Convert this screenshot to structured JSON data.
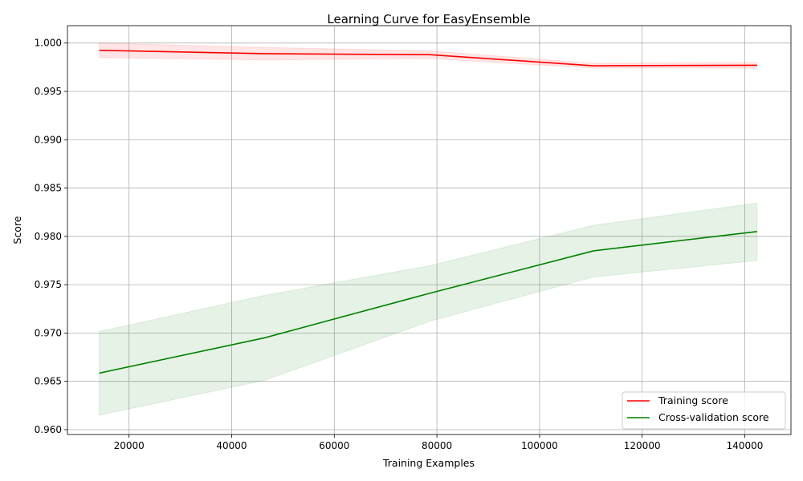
{
  "chart_data": {
    "type": "line",
    "title": "Learning Curve for EasyEnsemble",
    "xlabel": "Training Examples",
    "ylabel": "Score",
    "xlim": [
      8000,
      149000
    ],
    "ylim": [
      0.9595,
      1.0018
    ],
    "xticks": [
      20000,
      40000,
      60000,
      80000,
      100000,
      120000,
      140000
    ],
    "yticks": [
      0.96,
      0.965,
      0.97,
      0.975,
      0.98,
      0.985,
      0.99,
      0.995,
      1.0
    ],
    "ytick_labels": [
      "0.960",
      "0.965",
      "0.970",
      "0.975",
      "0.980",
      "0.985",
      "0.990",
      "0.995",
      "1.000"
    ],
    "grid": true,
    "legend_position": "lower-right",
    "x": [
      14200,
      46400,
      78500,
      110500,
      142400
    ],
    "series": [
      {
        "name": "Training score",
        "color": "#ff0000",
        "band_color": "#ff0000",
        "values": [
          0.99925,
          0.9989,
          0.9988,
          0.99765,
          0.9977
        ],
        "lower": [
          0.9985,
          0.99825,
          0.9984,
          0.9974,
          0.9974
        ],
        "upper": [
          1.0,
          0.99955,
          0.9992,
          0.9979,
          0.998
        ]
      },
      {
        "name": "Cross-validation score",
        "color": "#008000",
        "band_color": "#008000",
        "values": [
          0.96585,
          0.9695,
          0.9741,
          0.9785,
          0.9805
        ],
        "lower": [
          0.9615,
          0.9651,
          0.9712,
          0.9758,
          0.9775
        ],
        "upper": [
          0.97015,
          0.9739,
          0.97695,
          0.98115,
          0.98345
        ]
      }
    ]
  }
}
